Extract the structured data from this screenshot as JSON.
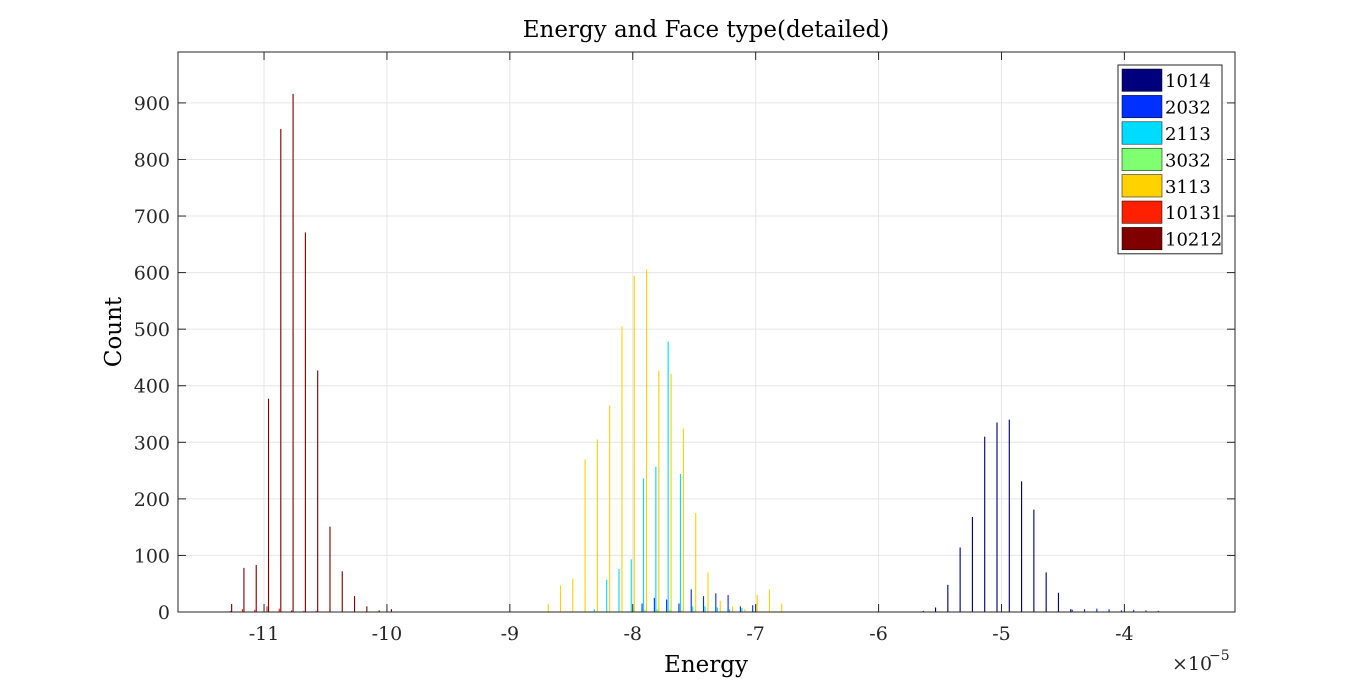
{
  "chart_data": {
    "type": "bar",
    "title": "Energy and Face type(detailed)",
    "xlabel": "Energy",
    "ylabel": "Count",
    "x_exponent_label": "×10",
    "x_exponent_power": "−5",
    "xlim": [
      -11.7,
      -3.1
    ],
    "ylim": [
      0,
      990
    ],
    "grid": true,
    "legend_position": "top-right",
    "x_ticks": [
      -11,
      -10,
      -9,
      -8,
      -7,
      -6,
      -5,
      -4
    ],
    "x_tick_labels": [
      "-11",
      "-10",
      "-9",
      "-8",
      "-7",
      "-6",
      "-5",
      "-4"
    ],
    "y_ticks": [
      0,
      100,
      200,
      300,
      400,
      500,
      600,
      700,
      800,
      900
    ],
    "y_tick_labels": [
      "0",
      "100",
      "200",
      "300",
      "400",
      "500",
      "600",
      "700",
      "800",
      "900"
    ],
    "bin_width": 0.1,
    "series": [
      {
        "name": "1014",
        "color": "#00007f",
        "x": [
          -5.6,
          -5.5,
          -5.4,
          -5.3,
          -5.2,
          -5.1,
          -5.0,
          -4.9,
          -4.8,
          -4.7,
          -4.6,
          -4.5,
          -4.4
        ],
        "values": [
          2,
          8,
          48,
          114,
          168,
          310,
          335,
          340,
          231,
          181,
          70,
          34,
          5
        ]
      },
      {
        "name": "2032",
        "color": "#0030ff",
        "x": [
          -7.9,
          -7.8,
          -7.7,
          -7.6,
          -7.5,
          -7.4,
          -7.3,
          -7.2,
          -7.1,
          -7.0,
          -4.4,
          -4.3,
          -4.2,
          -4.1,
          -4.0,
          -3.9,
          -3.8,
          -3.7
        ],
        "values": [
          15,
          25,
          22,
          15,
          40,
          28,
          33,
          30,
          10,
          12,
          4,
          5,
          6,
          5,
          3,
          4,
          3,
          2
        ]
      },
      {
        "name": "2113",
        "color": "#00dcff",
        "x": [
          -8.3,
          -8.2,
          -8.1,
          -8.0,
          -7.9,
          -7.8,
          -7.7,
          -7.6,
          -7.5,
          -7.4,
          -7.3,
          -7.2,
          -7.1
        ],
        "values": [
          5,
          57,
          76,
          93,
          236,
          257,
          478,
          244,
          10,
          10,
          8,
          5,
          7
        ]
      },
      {
        "name": "3032",
        "color": "#80ff70",
        "x": [
          -8.0,
          -7.9,
          -7.8,
          -7.7,
          -7.6,
          -7.5
        ],
        "values": [
          3,
          4,
          5,
          4,
          3,
          2
        ]
      },
      {
        "name": "3113",
        "color": "#ffd200",
        "x": [
          -8.7,
          -8.6,
          -8.5,
          -8.4,
          -8.3,
          -8.2,
          -8.1,
          -8.0,
          -7.9,
          -7.8,
          -7.7,
          -7.6,
          -7.5,
          -7.4,
          -7.3,
          -7.2,
          -7.1,
          -7.0,
          -6.9,
          -6.8
        ],
        "values": [
          14,
          47,
          59,
          270,
          305,
          365,
          505,
          594,
          606,
          427,
          421,
          324,
          175,
          70,
          20,
          10,
          5,
          30,
          40,
          15
        ]
      },
      {
        "name": "10131",
        "color": "#ff2000",
        "x": [
          -11.3,
          -11.2,
          -11.1,
          -11.0,
          -10.9,
          -10.8,
          -10.7,
          -10.6
        ],
        "values": [
          2,
          5,
          4,
          10,
          6,
          3,
          2,
          2
        ]
      },
      {
        "name": "10212",
        "color": "#800000",
        "x": [
          -11.3,
          -11.2,
          -11.1,
          -11.0,
          -10.9,
          -10.8,
          -10.7,
          -10.6,
          -10.5,
          -10.4,
          -10.3,
          -10.2,
          -10.1,
          -10.0
        ],
        "values": [
          14,
          78,
          83,
          377,
          854,
          916,
          671,
          427,
          151,
          72,
          28,
          10,
          3,
          5
        ]
      }
    ]
  }
}
